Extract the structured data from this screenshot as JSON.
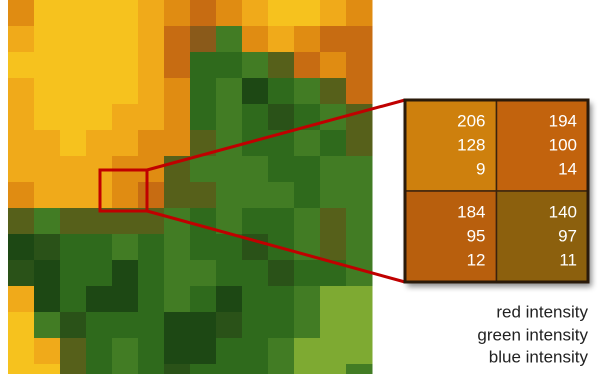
{
  "zoom": {
    "pixels": [
      {
        "red": 206,
        "green": 128,
        "blue": 9
      },
      {
        "red": 194,
        "green": 100,
        "blue": 14
      },
      {
        "red": 184,
        "green": 95,
        "blue": 12
      },
      {
        "red": 140,
        "green": 97,
        "blue": 11
      }
    ]
  },
  "legend": {
    "red": "red intensity",
    "green": "green intensity",
    "blue": "blue intensity"
  }
}
